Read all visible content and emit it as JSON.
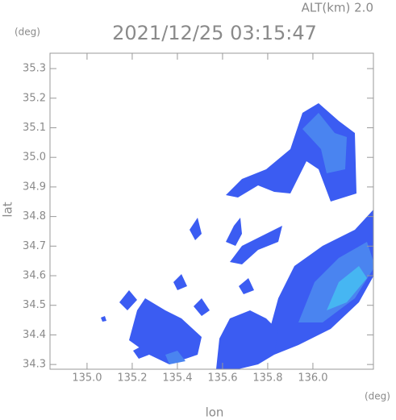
{
  "chart_data": {
    "type": "radar-map",
    "title": "2021/12/25 03:15:47",
    "annotation": "ALT(km) 2.0",
    "x_label": "lon",
    "y_label": "lat",
    "x_unit": "(deg)",
    "y_unit": "(deg)",
    "xlim": [
      134.836,
      136.268
    ],
    "ylim": [
      34.284,
      35.352
    ],
    "xticks": [
      {
        "value": 135.0,
        "label": "135.0"
      },
      135.2,
      135.4,
      135.6,
      135.8,
      {
        "value": 136.0,
        "label": "136.0"
      }
    ],
    "yticks": [
      34.3,
      34.4,
      34.5,
      34.6,
      34.7,
      34.8,
      34.9,
      {
        "value": 35.0,
        "label": "35.0"
      },
      35.1,
      35.2,
      35.3
    ]
  }
}
